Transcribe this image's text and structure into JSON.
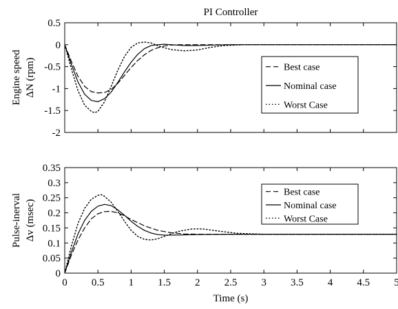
{
  "chart_data": [
    {
      "type": "line",
      "title": "PI Controller",
      "ylabel_lines": [
        "Engine speed",
        "ΔN (rpm)"
      ],
      "xlabel": "",
      "xlim": [
        0,
        5
      ],
      "ylim": [
        -2,
        0.5
      ],
      "xticks": [
        0,
        0.5,
        1,
        1.5,
        2,
        2.5,
        3,
        3.5,
        4,
        4.5,
        5
      ],
      "xtick_labels": [],
      "yticks": [
        0.5,
        0,
        -0.5,
        -1,
        -1.5,
        -2
      ],
      "ytick_labels": [
        "0.5",
        "0",
        "-0.5",
        "-1",
        "-1.5",
        "-2"
      ],
      "grid": false,
      "legend_position": "right",
      "series": [
        {
          "name": "Best case",
          "style": "dashed",
          "x": [
            0,
            0.1,
            0.2,
            0.3,
            0.4,
            0.5,
            0.6,
            0.7,
            0.8,
            0.9,
            1.0,
            1.1,
            1.2,
            1.3,
            1.4,
            1.5,
            1.6,
            1.7,
            1.8,
            2.0,
            2.5,
            3.0,
            4.0,
            5.0
          ],
          "y": [
            0,
            -0.38,
            -0.72,
            -0.95,
            -1.07,
            -1.1,
            -1.09,
            -1.02,
            -0.88,
            -0.7,
            -0.52,
            -0.36,
            -0.23,
            -0.13,
            -0.07,
            -0.03,
            -0.01,
            0,
            0,
            0,
            0,
            0,
            0,
            0
          ]
        },
        {
          "name": "Nominal case",
          "style": "solid",
          "x": [
            0,
            0.1,
            0.2,
            0.3,
            0.4,
            0.5,
            0.6,
            0.7,
            0.8,
            0.9,
            1.0,
            1.1,
            1.2,
            1.3,
            1.4,
            1.5,
            1.6,
            1.7,
            1.8,
            2.0,
            2.2,
            2.5,
            3.0,
            4.0,
            5.0
          ],
          "y": [
            0,
            -0.45,
            -0.85,
            -1.13,
            -1.27,
            -1.3,
            -1.23,
            -1.08,
            -0.86,
            -0.62,
            -0.4,
            -0.22,
            -0.09,
            -0.02,
            0.0,
            0.01,
            0.0,
            -0.01,
            -0.02,
            -0.02,
            -0.01,
            0,
            0,
            0,
            0
          ]
        },
        {
          "name": "Worst Case",
          "style": "dotted",
          "x": [
            0,
            0.1,
            0.2,
            0.3,
            0.4,
            0.45,
            0.5,
            0.6,
            0.7,
            0.8,
            0.9,
            1.0,
            1.1,
            1.2,
            1.3,
            1.4,
            1.5,
            1.6,
            1.8,
            2.0,
            2.2,
            2.4,
            2.7,
            3.0,
            4.0,
            5.0
          ],
          "y": [
            0,
            -0.55,
            -1.05,
            -1.38,
            -1.52,
            -1.55,
            -1.52,
            -1.3,
            -0.95,
            -0.58,
            -0.27,
            -0.06,
            0.04,
            0.06,
            0.04,
            -0.02,
            -0.07,
            -0.11,
            -0.14,
            -0.12,
            -0.06,
            -0.02,
            0,
            0,
            0,
            0
          ]
        }
      ]
    },
    {
      "type": "line",
      "title": "",
      "ylabel_lines": [
        "Pulse-inerval",
        "Δv (msec)"
      ],
      "xlabel": "Time (s)",
      "xlim": [
        0,
        5
      ],
      "ylim": [
        0,
        0.35
      ],
      "xticks": [
        0,
        0.5,
        1,
        1.5,
        2,
        2.5,
        3,
        3.5,
        4,
        4.5,
        5
      ],
      "xtick_labels": [
        "0",
        "0.5",
        "1",
        "1.5",
        "2",
        "2.5",
        "3",
        "3.5",
        "4",
        "4.5",
        "5"
      ],
      "yticks": [
        0.35,
        0.3,
        0.25,
        0.2,
        0.15,
        0.1,
        0.05,
        0
      ],
      "ytick_labels": [
        "0.35",
        "0.3",
        "0.25",
        "0.2",
        "0.15",
        "0.1",
        "0.05",
        "0"
      ],
      "grid": false,
      "legend_position": "right",
      "series": [
        {
          "name": "Best case",
          "style": "dashed",
          "x": [
            0,
            0.1,
            0.2,
            0.3,
            0.4,
            0.5,
            0.6,
            0.7,
            0.8,
            0.9,
            1.0,
            1.2,
            1.4,
            1.6,
            1.8,
            2.0,
            2.5,
            3.0,
            4.0,
            5.0
          ],
          "y": [
            0,
            0.06,
            0.11,
            0.15,
            0.18,
            0.197,
            0.204,
            0.205,
            0.2,
            0.19,
            0.178,
            0.157,
            0.142,
            0.134,
            0.13,
            0.129,
            0.129,
            0.129,
            0.129,
            0.129
          ]
        },
        {
          "name": "Nominal case",
          "style": "solid",
          "x": [
            0,
            0.1,
            0.2,
            0.3,
            0.4,
            0.5,
            0.6,
            0.7,
            0.8,
            0.9,
            1.0,
            1.1,
            1.2,
            1.3,
            1.4,
            1.5,
            1.6,
            1.8,
            2.0,
            2.5,
            3.0,
            4.0,
            5.0
          ],
          "y": [
            0,
            0.07,
            0.13,
            0.175,
            0.205,
            0.222,
            0.228,
            0.224,
            0.21,
            0.192,
            0.172,
            0.155,
            0.142,
            0.133,
            0.128,
            0.126,
            0.126,
            0.127,
            0.128,
            0.129,
            0.129,
            0.129,
            0.129
          ]
        },
        {
          "name": "Worst Case",
          "style": "dotted",
          "x": [
            0,
            0.1,
            0.2,
            0.3,
            0.4,
            0.5,
            0.55,
            0.6,
            0.7,
            0.8,
            0.9,
            1.0,
            1.1,
            1.2,
            1.3,
            1.4,
            1.5,
            1.7,
            1.9,
            2.0,
            2.1,
            2.3,
            2.6,
            3.0,
            4.0,
            5.0
          ],
          "y": [
            0,
            0.09,
            0.165,
            0.215,
            0.245,
            0.258,
            0.26,
            0.255,
            0.235,
            0.205,
            0.172,
            0.142,
            0.122,
            0.112,
            0.11,
            0.114,
            0.122,
            0.138,
            0.146,
            0.147,
            0.146,
            0.14,
            0.132,
            0.129,
            0.129,
            0.129
          ]
        }
      ]
    }
  ]
}
